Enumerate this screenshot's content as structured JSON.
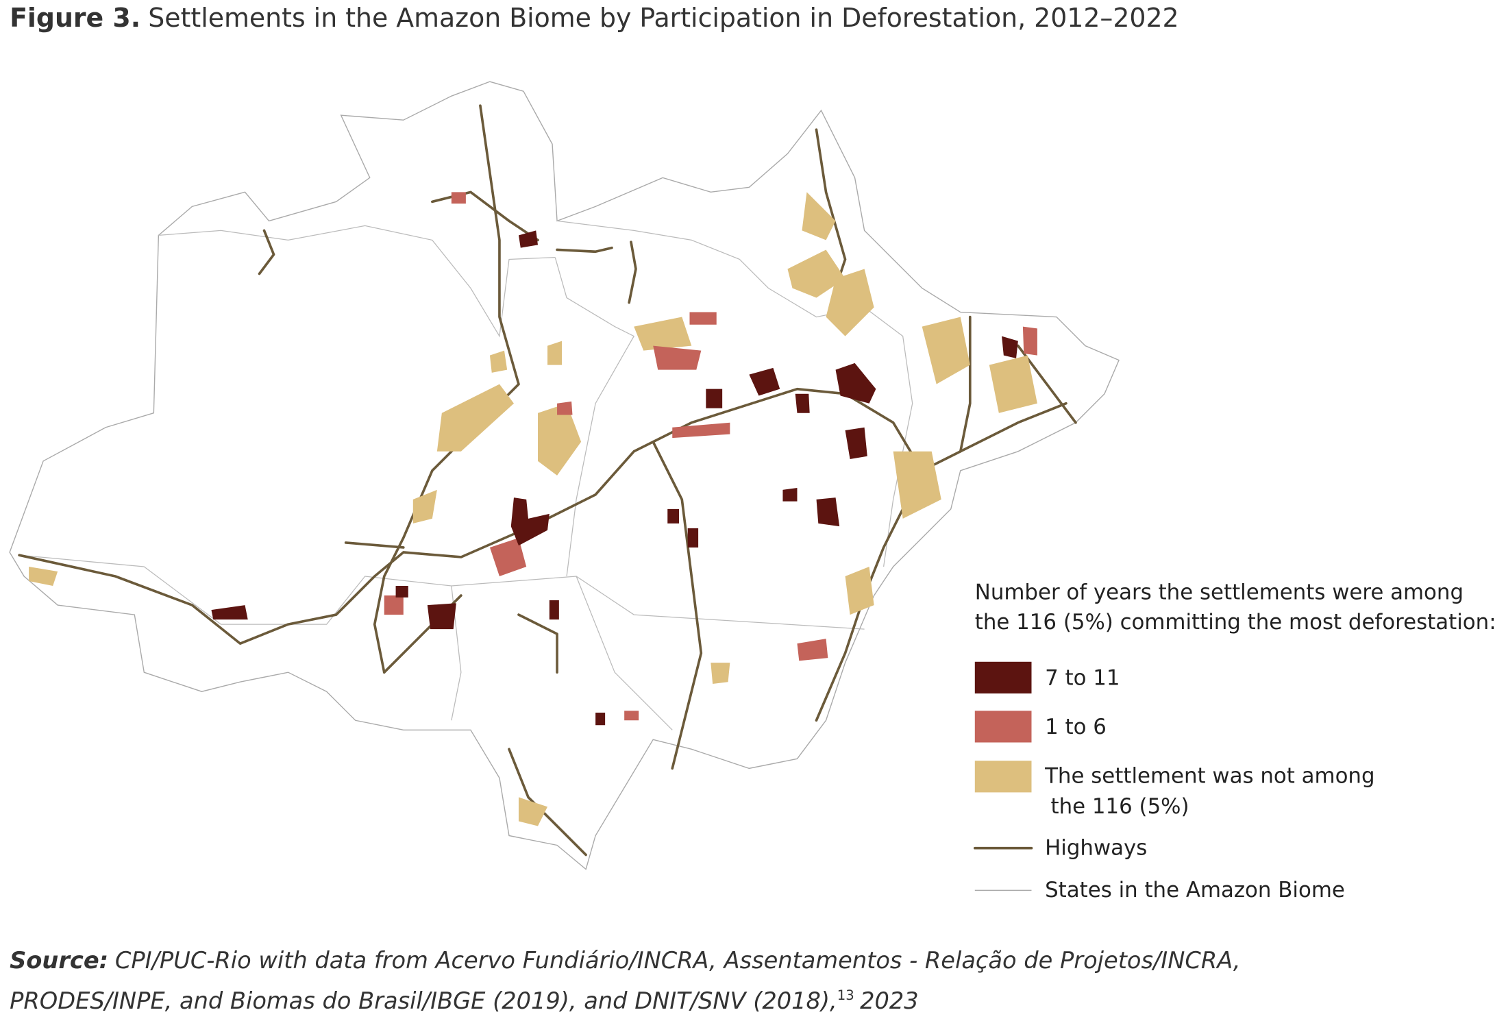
{
  "figure": {
    "label": "Figure 3.",
    "title": "Settlements in the Amazon Biome by Participation in Deforestation, 2012–2022"
  },
  "legend": {
    "title_lines": [
      "Number of years the settlements were among",
      "the 116 (5%) committing the most deforestation:"
    ],
    "items": [
      {
        "lines": [
          "7 to 11"
        ]
      },
      {
        "lines": [
          "1 to 6"
        ]
      },
      {
        "lines": [
          "The settlement was not among",
          "the 116 (5%)"
        ]
      },
      {
        "lines": [
          "Highways"
        ]
      },
      {
        "lines": [
          "States in the Amazon Biome"
        ]
      }
    ]
  },
  "source": {
    "label": "Source:",
    "line1": "CPI/PUC-Rio with data from Acervo Fundiário/INCRA, Assentamentos - Relação de Projetos/INCRA,",
    "line2": "PRODES/INPE, and Biomas do Brasil/IBGE (2019), and DNIT/SNV (2018),",
    "note": "13",
    "year": "2023"
  }
}
